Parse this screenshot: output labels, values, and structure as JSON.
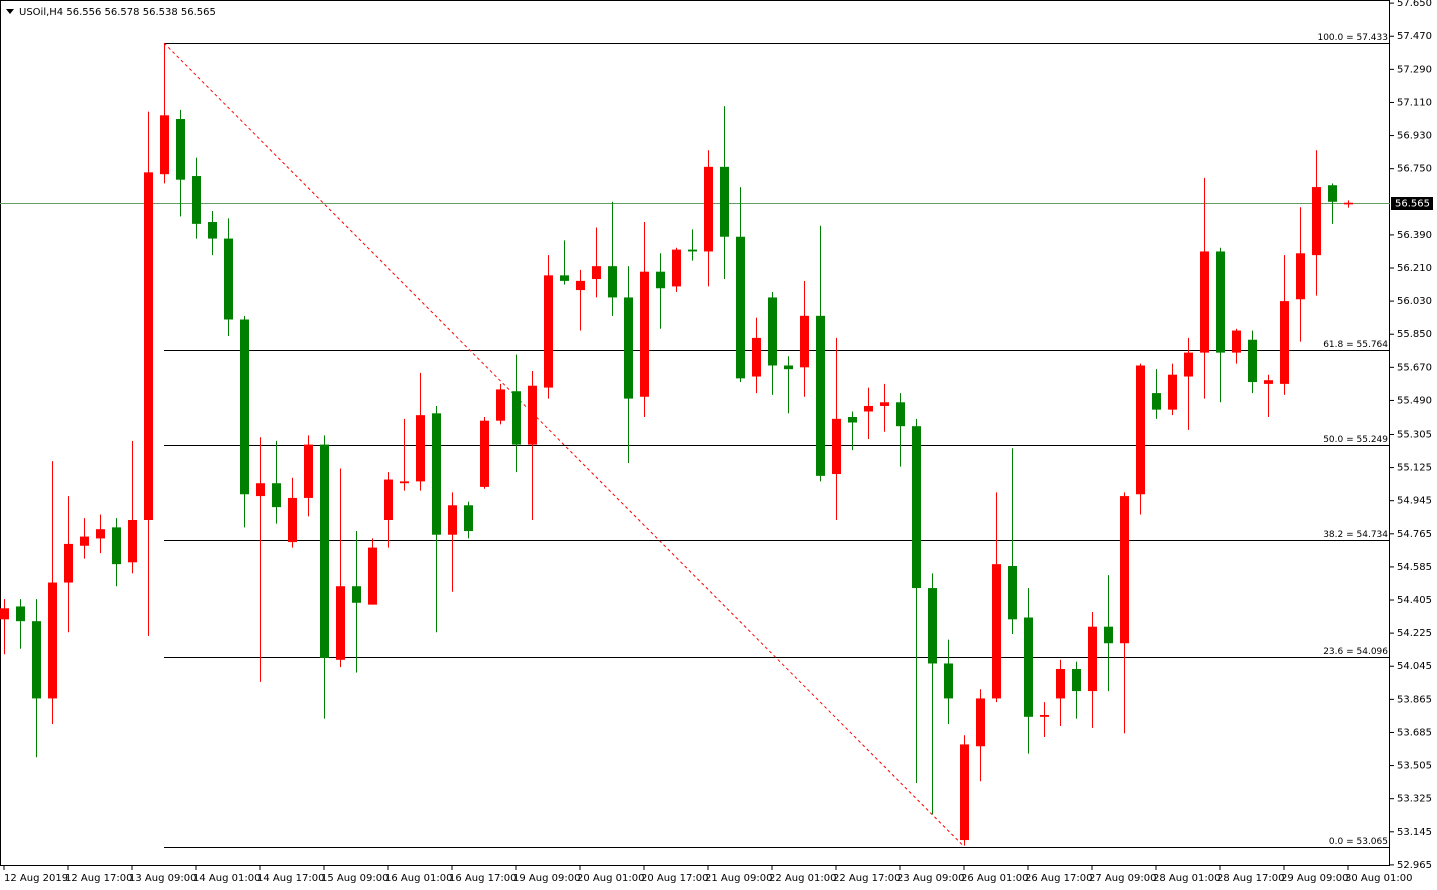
{
  "chart_data": {
    "type": "candlestick",
    "title": "USOil,H4",
    "categories": [
      "12 Aug 2019",
      null,
      null,
      null,
      "12 Aug 17:00",
      null,
      null,
      null,
      "13 Aug 09:00",
      null,
      null,
      null,
      "14 Aug 01:00",
      null,
      null,
      null,
      "14 Aug 17:00",
      null,
      null,
      null,
      "15 Aug 09:00",
      null,
      null,
      null,
      "16 Aug 01:00",
      null,
      null,
      null,
      "16 Aug 17:00",
      null,
      null,
      null,
      "19 Aug 09:00",
      null,
      null,
      null,
      "20 Aug 01:00",
      null,
      null,
      null,
      "20 Aug 17:00",
      null,
      null,
      null,
      "21 Aug 09:00",
      null,
      null,
      null,
      "22 Aug 01:00",
      null,
      null,
      null,
      "22 Aug 17:00",
      null,
      null,
      null,
      "23 Aug 09:00",
      null,
      null,
      null,
      "26 Aug 01:00",
      null,
      null,
      null,
      "26 Aug 17:00",
      null,
      null,
      null,
      "27 Aug 09:00",
      null,
      null,
      null,
      "28 Aug 01:00",
      null,
      null,
      null,
      "28 Aug 17:00",
      null,
      null,
      null,
      "29 Aug 09:00",
      null,
      null,
      null,
      "30 Aug 01:00"
    ],
    "open": [
      54.3,
      54.37,
      54.29,
      53.87,
      54.5,
      54.7,
      54.74,
      54.8,
      54.61,
      54.84,
      56.72,
      57.02,
      56.71,
      56.46,
      56.37,
      55.93,
      54.97,
      55.04,
      54.72,
      54.96,
      55.25,
      54.08,
      54.48,
      54.38,
      54.84,
      55.04,
      55.05,
      55.42,
      54.76,
      54.92,
      55.02,
      55.38,
      55.54,
      55.25,
      55.56,
      56.17,
      56.09,
      56.15,
      56.22,
      56.05,
      55.51,
      56.19,
      56.11,
      56.31,
      56.3,
      56.76,
      56.38,
      55.62,
      56.05,
      55.68,
      55.67,
      55.95,
      55.09,
      55.4,
      55.43,
      55.46,
      55.48,
      55.35,
      54.47,
      54.06,
      53.1,
      53.61,
      53.87,
      54.59,
      54.31,
      53.77,
      53.87,
      54.03,
      53.91,
      54.26,
      54.17,
      54.98,
      55.53,
      55.44,
      55.62,
      55.75,
      56.3,
      55.75,
      55.82,
      55.58,
      55.58,
      56.04,
      56.28,
      56.66,
      56.556
    ],
    "high": [
      54.41,
      54.41,
      54.41,
      55.16,
      54.97,
      54.85,
      54.87,
      54.85,
      55.27,
      57.06,
      57.43,
      57.07,
      56.81,
      56.52,
      56.48,
      55.95,
      55.29,
      55.27,
      55.07,
      55.3,
      55.3,
      55.12,
      54.78,
      54.74,
      55.1,
      55.39,
      55.64,
      55.46,
      54.99,
      54.94,
      55.4,
      55.58,
      55.74,
      55.65,
      56.28,
      56.36,
      56.2,
      56.43,
      56.57,
      56.22,
      56.46,
      56.29,
      56.32,
      56.42,
      56.85,
      57.09,
      56.65,
      55.94,
      56.08,
      55.73,
      56.14,
      56.44,
      55.83,
      55.43,
      55.56,
      55.58,
      55.53,
      55.39,
      54.55,
      54.19,
      53.67,
      53.92,
      54.99,
      55.23,
      54.47,
      53.85,
      54.08,
      54.07,
      54.34,
      54.54,
      54.99,
      55.69,
      55.66,
      55.69,
      55.83,
      56.7,
      56.32,
      55.88,
      55.87,
      55.63,
      56.28,
      56.54,
      56.85,
      56.67,
      56.578
    ],
    "low": [
      54.11,
      54.14,
      53.55,
      53.73,
      54.23,
      54.63,
      54.66,
      54.48,
      54.55,
      54.21,
      56.67,
      56.49,
      56.37,
      56.28,
      55.84,
      54.8,
      53.96,
      54.82,
      54.69,
      54.86,
      53.76,
      54.04,
      54.01,
      54.38,
      54.69,
      55.0,
      55.0,
      54.23,
      54.45,
      54.74,
      55.01,
      55.36,
      55.1,
      54.84,
      55.5,
      56.12,
      55.87,
      56.05,
      55.95,
      55.15,
      55.4,
      55.88,
      56.08,
      56.25,
      56.11,
      56.15,
      55.59,
      55.53,
      55.52,
      55.42,
      55.51,
      55.05,
      54.84,
      55.22,
      55.28,
      55.32,
      55.13,
      53.41,
      53.24,
      53.73,
      53.07,
      53.42,
      53.85,
      54.22,
      53.57,
      53.66,
      53.72,
      53.76,
      53.71,
      53.91,
      53.68,
      54.87,
      55.39,
      55.41,
      55.33,
      55.5,
      55.48,
      55.69,
      55.53,
      55.4,
      55.52,
      55.81,
      56.06,
      56.45,
      56.538
    ],
    "close": [
      54.36,
      54.29,
      53.87,
      54.5,
      54.71,
      54.75,
      54.79,
      54.6,
      54.84,
      56.73,
      57.04,
      56.69,
      56.45,
      56.37,
      55.93,
      54.98,
      55.04,
      54.91,
      54.96,
      55.25,
      54.09,
      54.48,
      54.39,
      54.69,
      55.06,
      55.05,
      55.41,
      54.76,
      54.92,
      54.78,
      55.38,
      55.55,
      55.25,
      55.57,
      56.17,
      56.14,
      56.14,
      56.22,
      56.05,
      55.5,
      56.19,
      56.1,
      56.31,
      56.3,
      56.76,
      56.38,
      55.61,
      55.83,
      55.68,
      55.66,
      55.95,
      55.08,
      55.39,
      55.37,
      55.46,
      55.48,
      55.35,
      54.47,
      54.06,
      53.87,
      53.62,
      53.87,
      54.6,
      54.3,
      53.77,
      53.78,
      54.03,
      53.91,
      54.26,
      54.17,
      54.97,
      55.68,
      55.44,
      55.63,
      55.75,
      56.3,
      55.75,
      55.87,
      55.59,
      55.6,
      56.03,
      56.29,
      56.65,
      56.57,
      56.565
    ],
    "up_color": "#ff0000",
    "down_color": "#008000",
    "ylim": [
      52.959,
      57.667
    ],
    "yticks": [
      {
        "value": 57.65,
        "label": "57.650"
      },
      {
        "value": 57.47,
        "label": "57.470"
      },
      {
        "value": 57.29,
        "label": "57.290"
      },
      {
        "value": 57.11,
        "label": "57.110"
      },
      {
        "value": 56.93,
        "label": "56.930"
      },
      {
        "value": 56.75,
        "label": "56.750"
      },
      {
        "value": 56.39,
        "label": "56.390"
      },
      {
        "value": 56.21,
        "label": "56.210"
      },
      {
        "value": 56.03,
        "label": "56.030"
      },
      {
        "value": 55.85,
        "label": "55.850"
      },
      {
        "value": 55.67,
        "label": "55.670"
      },
      {
        "value": 55.49,
        "label": "55.490"
      },
      55.305,
      55.125,
      54.945,
      54.765,
      54.585,
      54.405,
      54.225,
      54.045,
      53.865,
      53.685,
      53.505,
      53.325,
      53.145,
      52.965
    ],
    "grid": false,
    "fib_levels": [
      {
        "value": 57.433,
        "label": "100.0 = 57.433"
      },
      {
        "value": 55.764,
        "label": "61.8 = 55.764"
      },
      {
        "value": 55.249,
        "label": "50.0 = 55.249"
      },
      {
        "value": 54.734,
        "label": "38.2 = 54.734"
      },
      {
        "value": 54.096,
        "label": "23.6 = 54.096"
      },
      {
        "value": 53.065,
        "label": "0.0 = 53.065"
      }
    ],
    "fib_color": "#000000",
    "trend_color": "#ff0000",
    "price_line_color": "#5f9f5f"
  }
}
